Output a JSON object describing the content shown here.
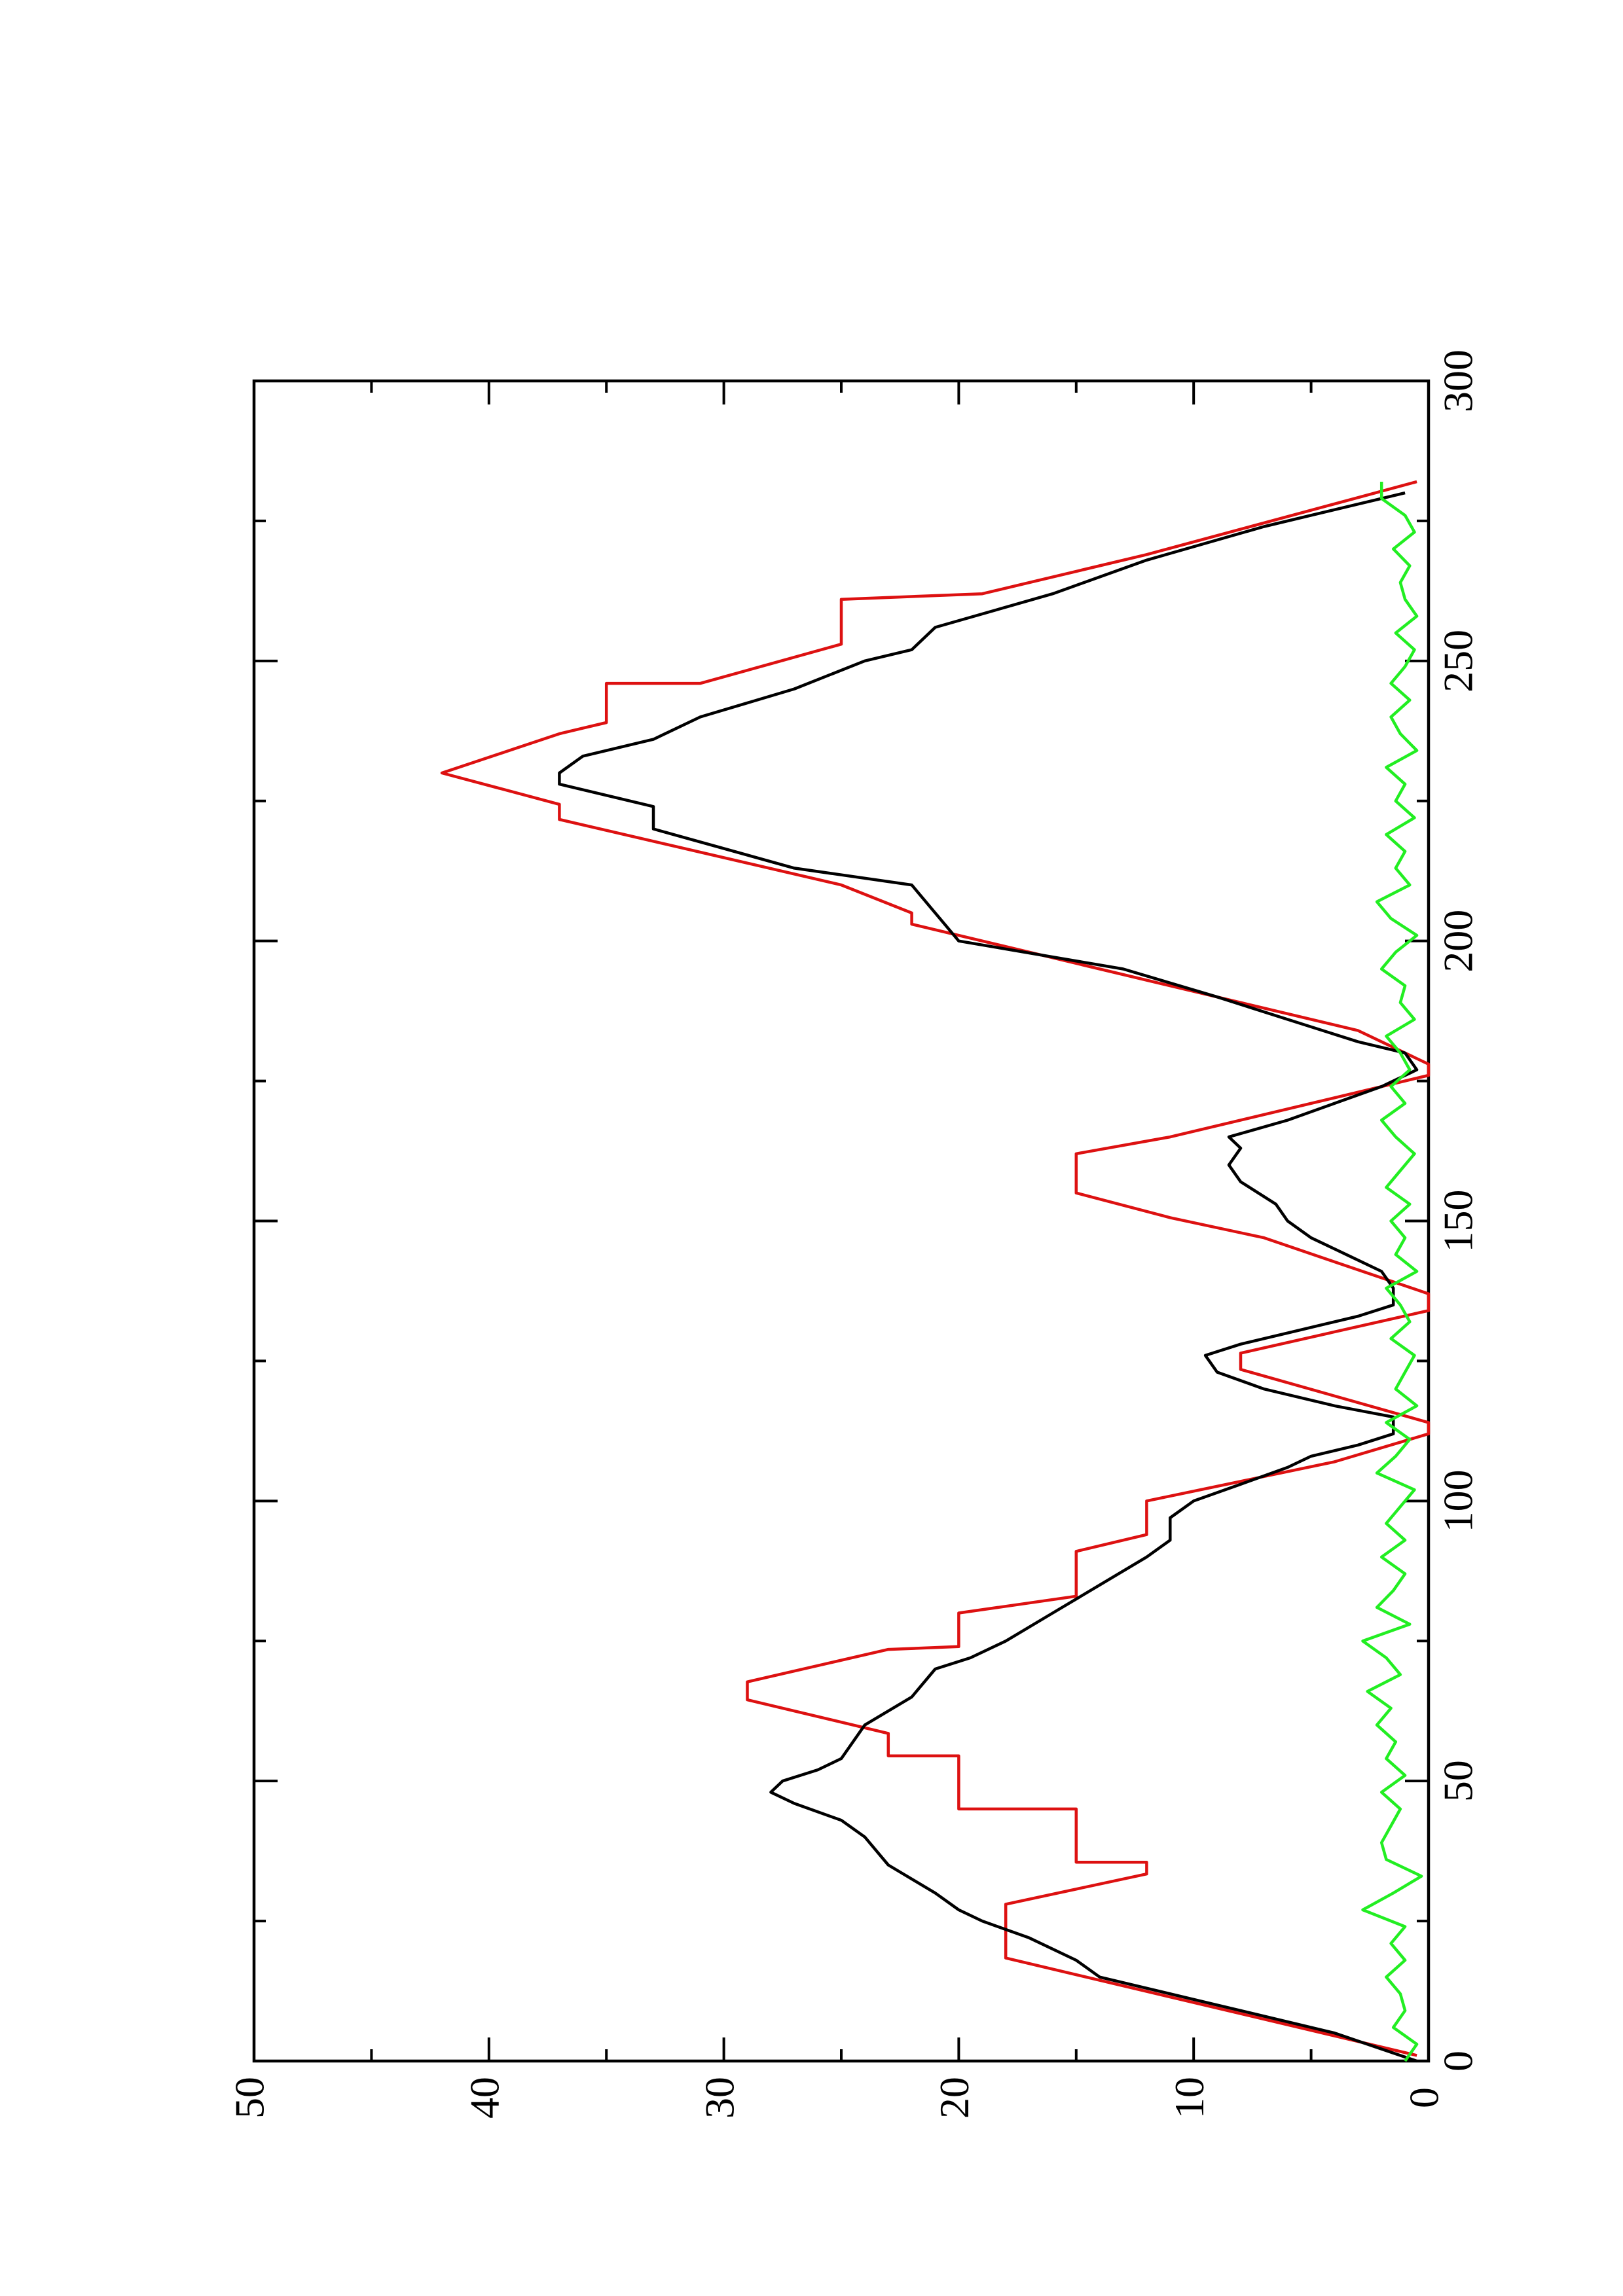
{
  "chart_data": {
    "type": "line",
    "xlim": [
      0,
      300
    ],
    "ylim": [
      0,
      50
    ],
    "xticks": [
      0,
      50,
      100,
      150,
      200,
      250,
      300
    ],
    "yticks": [
      0,
      10,
      20,
      30,
      40,
      50
    ],
    "xticks_minor": [
      25,
      75,
      125,
      175,
      225,
      275
    ],
    "yticks_minor": [
      5,
      15,
      25,
      35,
      45
    ],
    "series": [
      {
        "color": "#dd1111",
        "x": [
          1,
          18.4,
          28,
          33.4,
          35.5,
          35.5,
          45,
          45,
          54.5,
          54.5,
          58.5,
          64.5,
          67.7,
          73.5,
          74,
          80,
          83,
          91,
          94,
          100,
          107,
          112,
          114,
          123.5,
          126.4,
          134,
          137,
          142.7,
          147,
          150.6,
          155,
          162,
          165,
          176,
          178,
          182,
          184,
          203,
          205,
          210,
          221.7,
          224.4,
          230,
          237,
          239,
          246,
          246,
          253,
          261,
          262,
          269,
          282
        ],
        "values": [
          0.5,
          18,
          18,
          12,
          12,
          15,
          15,
          20,
          20,
          23,
          23,
          29,
          29,
          23,
          20,
          20,
          15,
          15,
          12,
          12,
          4,
          0,
          0,
          8,
          8,
          0,
          0,
          4,
          7,
          11,
          15,
          15,
          11,
          0,
          0,
          2,
          3,
          22,
          22,
          25,
          37,
          37,
          42,
          37,
          35,
          35,
          31,
          25,
          25,
          19,
          12,
          0.5
        ]
      },
      {
        "color": "#000000",
        "x": [
          0,
          5,
          10,
          15,
          18,
          22,
          25,
          27,
          30,
          35,
          40,
          43,
          46,
          48,
          50,
          52,
          54,
          57,
          60,
          65,
          70,
          72,
          75,
          80,
          85,
          90,
          93,
          97,
          100,
          103,
          106,
          108,
          110,
          112,
          115,
          117,
          120,
          123,
          126,
          128,
          131,
          133,
          135,
          138,
          141,
          144,
          147,
          150,
          153,
          157,
          160,
          163,
          165,
          168,
          171,
          174,
          177,
          180,
          182,
          186,
          190,
          195,
          200,
          205,
          210,
          213,
          220,
          224,
          228,
          230,
          233,
          236,
          240,
          245,
          250,
          252,
          256,
          262,
          268,
          274,
          278,
          280
        ],
        "values": [
          0.5,
          4,
          9,
          14,
          15,
          17,
          19,
          20,
          21,
          23,
          24,
          25,
          27,
          28,
          27.5,
          26,
          25,
          24.5,
          24,
          22,
          21,
          19.5,
          18,
          16,
          14,
          12,
          11,
          11,
          10,
          8,
          6,
          5,
          3,
          1.5,
          1.5,
          4,
          7,
          9,
          9.5,
          8,
          5,
          3,
          1.5,
          1.5,
          2,
          3.5,
          5,
          6,
          6.5,
          8,
          8.5,
          8,
          8.5,
          6,
          4,
          2,
          0.5,
          1,
          3,
          6,
          9,
          13,
          20,
          21,
          22,
          27,
          33,
          33,
          37,
          37,
          36,
          33,
          31,
          27,
          24,
          22,
          21,
          16,
          12,
          7,
          3,
          1
        ]
      },
      {
        "color": "#22ee22",
        "x": [
          0,
          3,
          6,
          9,
          12,
          15,
          18,
          21,
          24,
          27,
          30,
          33,
          36,
          39,
          42,
          45,
          48,
          51,
          54,
          57,
          60,
          63,
          66,
          69,
          72,
          75,
          78,
          81,
          84,
          87,
          90,
          93,
          96,
          99,
          102,
          105,
          108,
          111,
          114,
          117,
          120,
          123,
          126,
          129,
          132,
          135,
          138,
          141,
          144,
          147,
          150,
          153,
          156,
          159,
          162,
          165,
          168,
          171,
          174,
          177,
          180,
          183,
          186,
          189,
          192,
          195,
          198,
          201,
          204,
          207,
          210,
          213,
          216,
          219,
          222,
          225,
          228,
          231,
          234,
          237,
          240,
          243,
          246,
          249,
          252,
          255,
          258,
          261,
          264,
          267,
          270,
          273,
          276,
          279,
          282
        ],
        "values": [
          1,
          0.5,
          1.5,
          1,
          1.2,
          1.8,
          1,
          1.6,
          1,
          2.8,
          1.5,
          0.3,
          1.8,
          2,
          1.6,
          1.2,
          2,
          1,
          1.8,
          1.4,
          2.2,
          1.6,
          2.6,
          1.2,
          1.8,
          2.8,
          0.8,
          2.2,
          1.5,
          1,
          2,
          1,
          1.8,
          1.2,
          0.6,
          2.2,
          1.4,
          0.8,
          1.8,
          0.5,
          1.4,
          1,
          0.6,
          1.6,
          0.8,
          1.2,
          1.8,
          0.5,
          1.4,
          1,
          1.6,
          0.8,
          1.8,
          1.2,
          0.6,
          1.4,
          2,
          1,
          1.6,
          0.8,
          1.2,
          1.8,
          0.6,
          1.2,
          1,
          2,
          1.4,
          0.5,
          1.6,
          2.2,
          0.8,
          1.4,
          1,
          1.8,
          0.6,
          1.4,
          1,
          1.8,
          0.5,
          1.2,
          1.6,
          0.8,
          1.6,
          1,
          0.6,
          1.4,
          0.5,
          1,
          1.2,
          0.8,
          1.5,
          0.6,
          1,
          2,
          2
        ]
      }
    ]
  }
}
